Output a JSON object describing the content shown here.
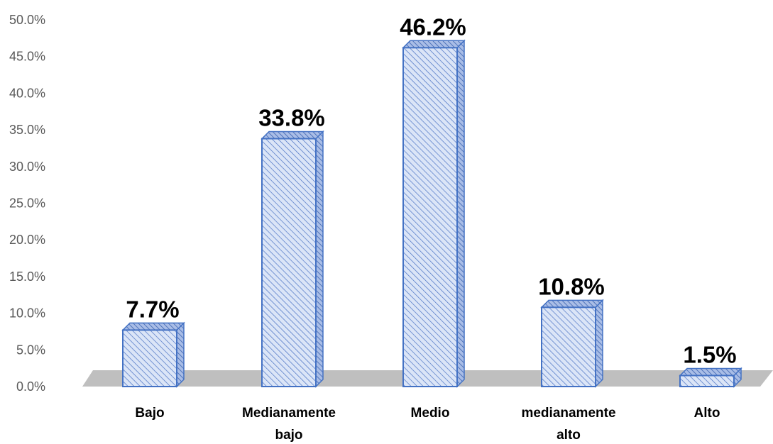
{
  "chart_data": {
    "type": "bar",
    "categories": [
      "Bajo",
      "Medianamente bajo",
      "Medio",
      "medianamente alto",
      "Alto"
    ],
    "category_lines": [
      [
        "Bajo"
      ],
      [
        "Medianamente",
        "bajo"
      ],
      [
        "Medio"
      ],
      [
        "medianamente",
        "alto"
      ],
      [
        "Alto"
      ]
    ],
    "values": [
      7.7,
      33.8,
      46.2,
      10.8,
      1.5
    ],
    "data_labels": [
      "7.7%",
      "33.8%",
      "46.2%",
      "10.8%",
      "1.5%"
    ],
    "title": "",
    "xlabel": "",
    "ylabel": "",
    "ylim": [
      0,
      50
    ],
    "yticks": [
      0,
      5,
      10,
      15,
      20,
      25,
      30,
      35,
      40,
      45,
      50
    ],
    "ytick_labels": [
      "0.0%",
      "5.0%",
      "10.0%",
      "15.0%",
      "20.0%",
      "25.0%",
      "30.0%",
      "35.0%",
      "40.0%",
      "45.0%",
      "50.0%"
    ],
    "grid": false,
    "legend": "none",
    "style": "3d-bar",
    "colors": {
      "bar_fill": "#dbe5f7",
      "bar_hatch": "#4a72c4",
      "bar_stroke": "#4472c4",
      "floor": "#bfbfbf"
    }
  }
}
